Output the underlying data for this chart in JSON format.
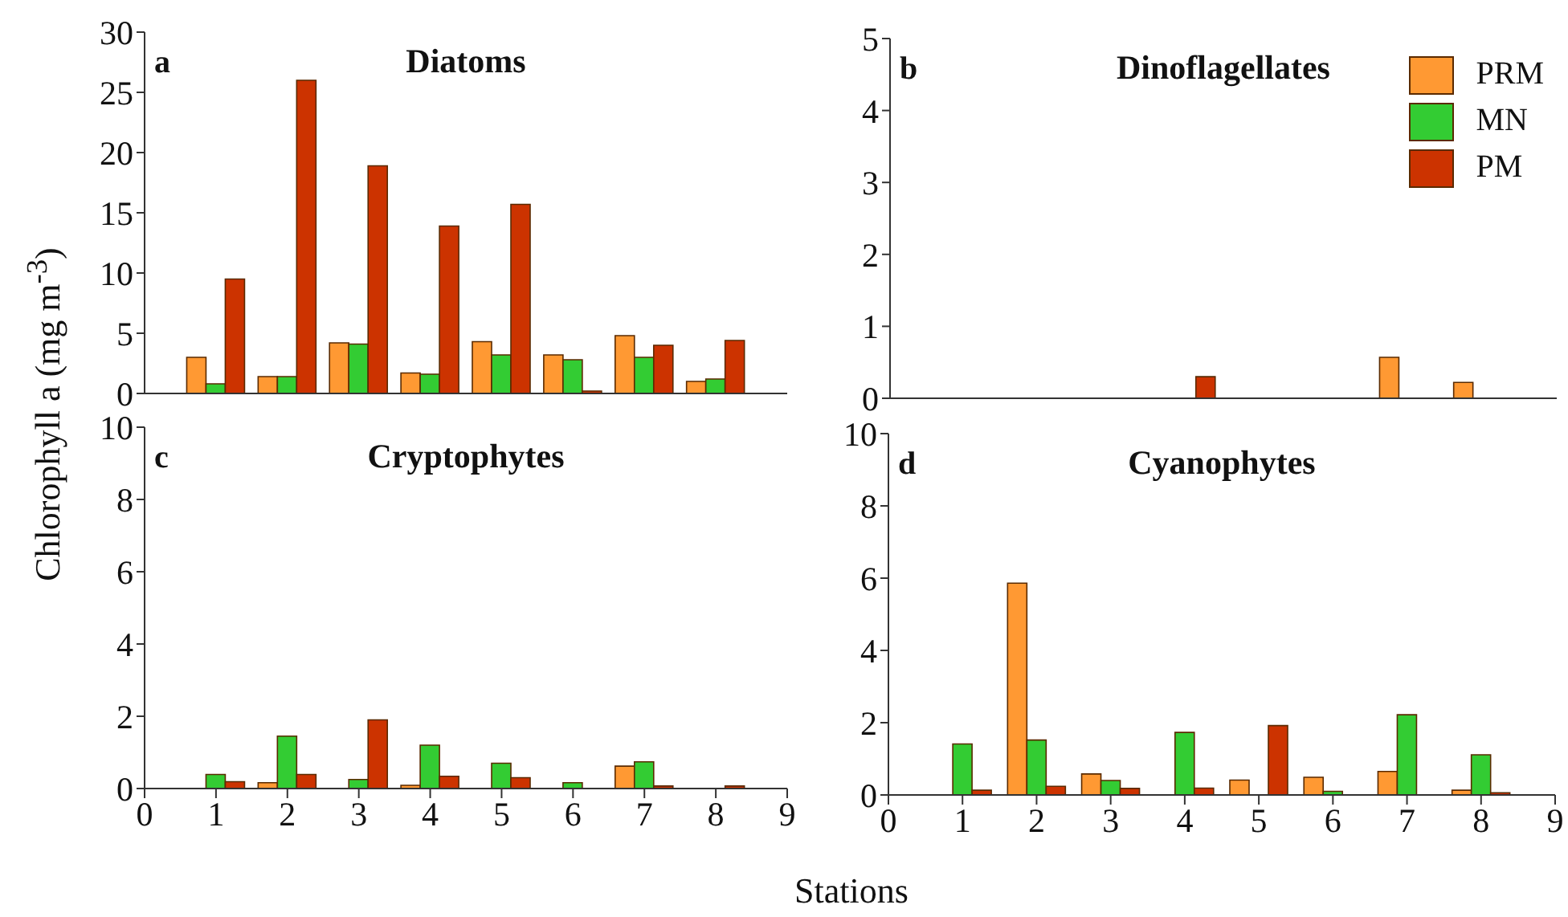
{
  "chart_data": [
    {
      "type": "bar",
      "title": "Diatoms",
      "annotations": [
        "a"
      ],
      "ylabel": "Chlorophyll a (mg m$^{-3}$)",
      "x": [
        1,
        2,
        3,
        4,
        5,
        6,
        7,
        8
      ],
      "series": [
        {
          "color": "#ff9933",
          "values": [
            3.0,
            1.4,
            4.2,
            1.7,
            4.3,
            3.2,
            4.8,
            1.0
          ]
        },
        {
          "color": "#33cc33",
          "values": [
            0.8,
            1.4,
            4.1,
            1.6,
            3.2,
            2.8,
            3.0,
            1.2
          ]
        },
        {
          "color": "#cc3300",
          "values": [
            9.5,
            26.0,
            18.9,
            13.9,
            15.7,
            0.2,
            4.0,
            4.4
          ]
        }
      ],
      "xlim": [
        0,
        9
      ],
      "xticks": [
        0,
        1,
        2,
        3,
        4,
        5,
        6,
        7,
        8,
        9
      ],
      "ylim": [
        0,
        30
      ],
      "yticks": [
        0,
        5,
        10,
        15,
        20,
        25,
        30
      ],
      "tick_labels": "y"
    },
    {
      "type": "bar",
      "title": "Dinoflagellates",
      "annotations": [
        "b"
      ],
      "x": [
        1,
        2,
        3,
        4,
        5,
        6,
        7,
        8
      ],
      "series": [
        {
          "name": "PRM",
          "color": "#ff9933",
          "values": [
            0,
            0,
            0,
            0,
            0,
            0,
            0.57,
            0.22
          ]
        },
        {
          "name": "MN",
          "color": "#33cc33",
          "values": [
            0,
            0,
            0,
            0,
            0,
            0,
            0,
            0
          ]
        },
        {
          "name": "PM",
          "color": "#cc3300",
          "values": [
            0,
            0,
            0,
            0.3,
            0,
            0,
            0,
            0
          ]
        }
      ],
      "xlim": [
        0,
        9
      ],
      "xticks": [
        0,
        1,
        2,
        3,
        4,
        5,
        6,
        7,
        8,
        9
      ],
      "ylim": [
        0,
        5
      ],
      "yticks": [
        0,
        1,
        2,
        3,
        4,
        5
      ],
      "tick_labels": "y",
      "legend": "top right"
    },
    {
      "type": "bar",
      "title": "Cryptophytes",
      "annotations": [
        "c"
      ],
      "xlabel": "Stations",
      "x": [
        1,
        2,
        3,
        4,
        5,
        6,
        7,
        8
      ],
      "series": [
        {
          "color": "#ff9933",
          "values": [
            0,
            0.16,
            0,
            0.09,
            0,
            0,
            0.62,
            0
          ]
        },
        {
          "color": "#33cc33",
          "values": [
            0.39,
            1.45,
            0.25,
            1.2,
            0.7,
            0.16,
            0.74,
            0
          ]
        },
        {
          "color": "#cc3300",
          "values": [
            0.19,
            0.39,
            1.9,
            0.34,
            0.3,
            0,
            0.07,
            0.07
          ]
        }
      ],
      "xlim": [
        0,
        9
      ],
      "xticks": [
        0,
        1,
        2,
        3,
        4,
        5,
        6,
        7,
        8,
        9
      ],
      "ylim": [
        0,
        10
      ],
      "yticks": [
        0,
        2,
        4,
        6,
        8,
        10
      ]
    },
    {
      "type": "bar",
      "title": "Cyanophytes",
      "annotations": [
        "d"
      ],
      "x": [
        1,
        2,
        3,
        4,
        5,
        6,
        7,
        8
      ],
      "series": [
        {
          "color": "#ff9933",
          "values": [
            0,
            5.86,
            0.58,
            0,
            0.41,
            0.49,
            0.65,
            0.13
          ]
        },
        {
          "color": "#33cc33",
          "values": [
            1.41,
            1.52,
            0.4,
            1.73,
            0,
            0.1,
            2.22,
            1.11
          ]
        },
        {
          "color": "#cc3300",
          "values": [
            0.13,
            0.24,
            0.18,
            0.19,
            1.92,
            0,
            0,
            0.06
          ]
        }
      ],
      "xlim": [
        0,
        9
      ],
      "xticks": [
        0,
        1,
        2,
        3,
        4,
        5,
        6,
        7,
        8,
        9
      ],
      "ylim": [
        0,
        10
      ],
      "yticks": [
        0,
        2,
        4,
        6,
        8,
        10
      ]
    }
  ]
}
